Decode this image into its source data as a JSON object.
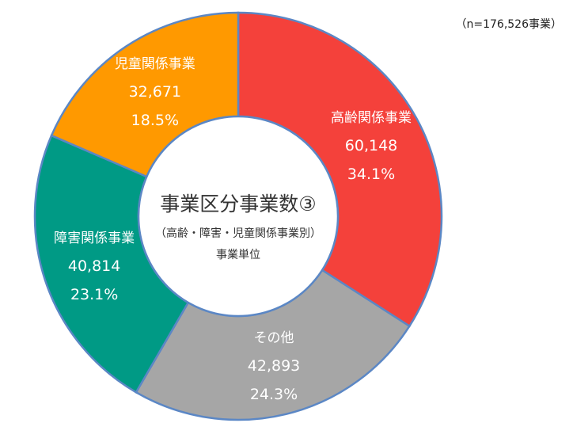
{
  "note": "（n=176,526事業）",
  "chart_data": {
    "type": "pie",
    "style": "donut",
    "total": 176526,
    "title": "事業区分事業数③",
    "subtitle": "（高齢・障害・児童関係事業別）",
    "unit_label": "事業単位",
    "slices": [
      {
        "label": "高齢関係事業",
        "value": 60148,
        "value_text": "60,148",
        "percent_text": "34.1%",
        "color": "#f4413b"
      },
      {
        "label": "その他",
        "value": 42893,
        "value_text": "42,893",
        "percent_text": "24.3%",
        "color": "#a6a6a6"
      },
      {
        "label": "障害関係事業",
        "value": 40814,
        "value_text": "40,814",
        "percent_text": "23.1%",
        "color": "#009a85"
      },
      {
        "label": "児童関係事業",
        "value": 32671,
        "value_text": "32,671",
        "percent_text": "18.5%",
        "color": "#ff9900"
      }
    ]
  }
}
